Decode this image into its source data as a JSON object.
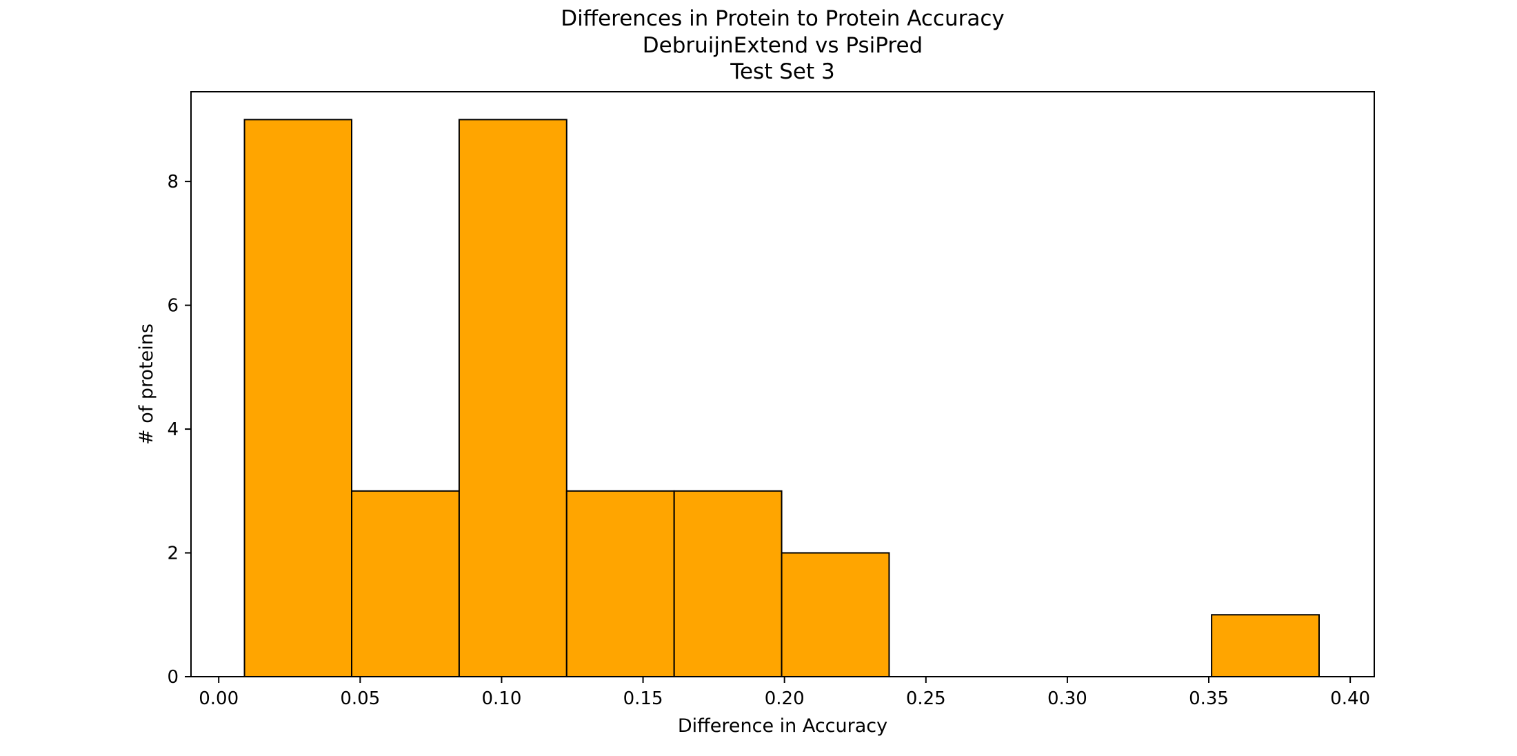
{
  "chart_data": {
    "type": "bar",
    "title_lines": [
      "Differences in Protein to Protein Accuracy",
      "DebruijnExtend vs PsiPred",
      "Test Set 3"
    ],
    "xlabel": "Difference in Accuracy",
    "ylabel": "# of proteins",
    "xlim": [
      -0.0098,
      0.4085
    ],
    "ylim": [
      0,
      9.45
    ],
    "xticks": [
      0.0,
      0.05,
      0.1,
      0.15,
      0.2,
      0.25,
      0.3,
      0.35,
      0.4
    ],
    "xtick_labels": [
      "0.00",
      "0.05",
      "0.10",
      "0.15",
      "0.20",
      "0.25",
      "0.30",
      "0.35",
      "0.40"
    ],
    "yticks": [
      0,
      2,
      4,
      6,
      8
    ],
    "ytick_labels": [
      "0",
      "2",
      "4",
      "6",
      "8"
    ],
    "bins": [
      {
        "start": 0.0091,
        "end": 0.047,
        "value": 9
      },
      {
        "start": 0.047,
        "end": 0.085,
        "value": 3
      },
      {
        "start": 0.085,
        "end": 0.123,
        "value": 9
      },
      {
        "start": 0.123,
        "end": 0.161,
        "value": 3
      },
      {
        "start": 0.161,
        "end": 0.199,
        "value": 3
      },
      {
        "start": 0.199,
        "end": 0.237,
        "value": 2
      },
      {
        "start": 0.351,
        "end": 0.389,
        "value": 1
      }
    ],
    "bar_color": "#ffa500",
    "edge_color": "#000000",
    "grid": false,
    "legend": "none"
  }
}
